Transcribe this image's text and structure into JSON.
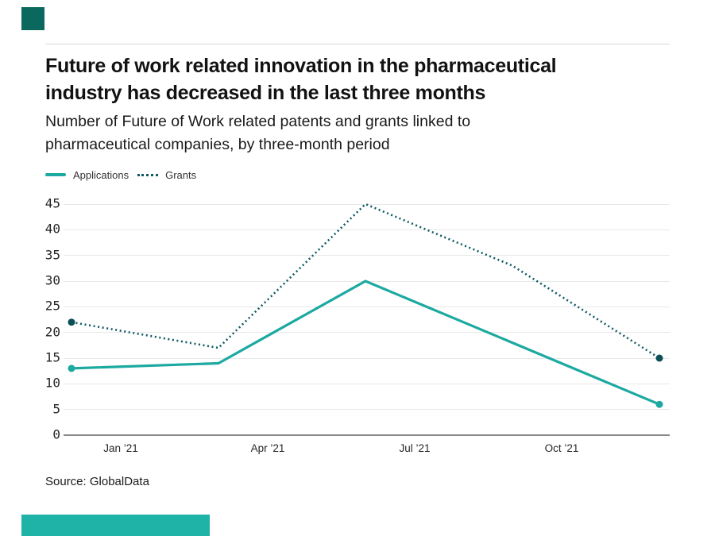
{
  "header": {
    "title_line1": "Future of work related innovation in the pharmaceutical",
    "title_line2": "industry has decreased in the last three months",
    "subtitle_line1": "Number of Future of Work related patents and grants linked to",
    "subtitle_line2": "pharmaceutical companies, by three-month period"
  },
  "chart_data": {
    "type": "line",
    "title": "Number of Future of Work related patents and grants linked to pharmaceutical companies, by three-month period",
    "x_tick_labels": [
      "Jan ’21",
      "Apr ’21",
      "Jul ’21",
      "Oct ’21"
    ],
    "y_ticks": [
      0,
      5,
      10,
      15,
      20,
      25,
      30,
      35,
      40,
      45
    ],
    "ylim": [
      0,
      45
    ],
    "grid": "horizontal-only",
    "legend_position": "top-left",
    "series": [
      {
        "name": "Applications",
        "values": [
          13,
          14,
          30,
          18,
          6
        ],
        "color": "#1CA9A1",
        "line_style": "solid",
        "endpoint_markers": true,
        "marker_color": "#1CA9A1"
      },
      {
        "name": "Grants",
        "values": [
          22,
          17,
          45,
          33,
          15
        ],
        "color": "#0E5A63",
        "line_style": "dotted",
        "endpoint_markers": true,
        "marker_color": "#0C4F58"
      }
    ]
  },
  "source": {
    "text": "Source: GlobalData"
  },
  "brand": {
    "square_color": "#0B685E",
    "bar_color": "#1FB2A6"
  },
  "axis": {
    "grid_color": "#e8e8e8",
    "axis_line_color": "#8a8a8a",
    "label_color": "#262626"
  }
}
